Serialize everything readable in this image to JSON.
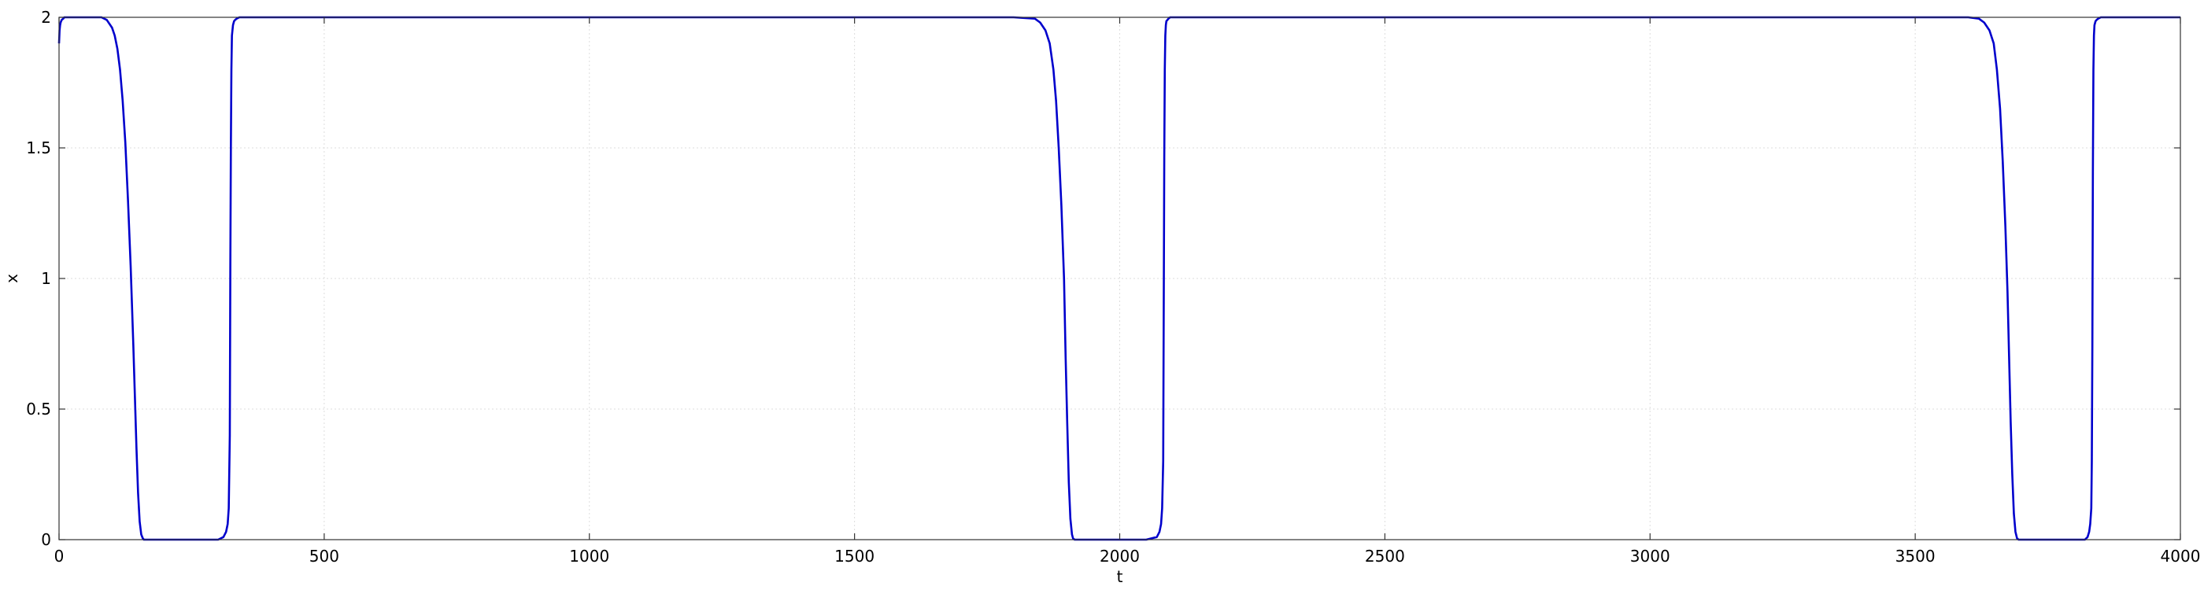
{
  "chart_data": {
    "type": "line",
    "title": "",
    "xlabel": "t",
    "ylabel": "x",
    "xlim": [
      0,
      4000
    ],
    "ylim": [
      0,
      2
    ],
    "grid": true,
    "x_ticks": [
      0,
      500,
      1000,
      1500,
      2000,
      2500,
      3000,
      3500,
      4000
    ],
    "x_tick_labels": [
      "0",
      "500",
      "1000",
      "1500",
      "2000",
      "2500",
      "3000",
      "3500",
      "4000"
    ],
    "y_ticks": [
      0,
      0.5,
      1,
      1.5,
      2
    ],
    "y_tick_labels": [
      "0",
      "0.5",
      "1",
      "1.5",
      "2"
    ],
    "line_color": "#0000cc",
    "grid_color": "#dddddd",
    "series": [
      {
        "x": [
          0,
          1,
          2,
          3,
          5,
          8,
          10,
          20,
          40,
          60,
          80,
          90,
          100,
          105,
          110,
          115,
          120,
          125,
          130,
          135,
          140,
          143,
          146,
          149,
          152,
          155,
          158,
          160,
          165,
          170,
          200,
          250,
          300,
          310,
          315,
          318,
          320,
          322,
          323,
          324,
          325,
          326,
          328,
          330,
          332,
          335,
          340,
          360,
          500,
          1000,
          1500,
          1800,
          1840,
          1850,
          1860,
          1868,
          1875,
          1880,
          1885,
          1890,
          1895,
          1898,
          1901,
          1904,
          1907,
          1910,
          1912,
          1915,
          1920,
          1950,
          2000,
          2050,
          2070,
          2075,
          2078,
          2080,
          2082,
          2083,
          2084,
          2085,
          2086,
          2087,
          2088,
          2090,
          2092,
          2095,
          2100,
          2150,
          2500,
          3000,
          3500,
          3600,
          3620,
          3630,
          3640,
          3648,
          3654,
          3660,
          3665,
          3670,
          3674,
          3677,
          3680,
          3683,
          3686,
          3689,
          3692,
          3695,
          3700,
          3750,
          3800,
          3820,
          3825,
          3828,
          3830,
          3832,
          3833,
          3834,
          3835,
          3836,
          3837,
          3838,
          3840,
          3842,
          3845,
          3850,
          3900,
          4000
        ],
        "y": [
          1.9,
          1.95,
          1.97,
          1.98,
          1.99,
          1.995,
          2,
          2,
          2,
          2,
          2,
          1.99,
          1.96,
          1.93,
          1.88,
          1.8,
          1.68,
          1.52,
          1.3,
          1.05,
          0.75,
          0.55,
          0.35,
          0.18,
          0.07,
          0.02,
          0.005,
          0,
          0,
          0,
          0,
          0,
          0,
          0.01,
          0.03,
          0.06,
          0.12,
          0.4,
          1.04,
          1.5,
          1.8,
          1.93,
          1.97,
          1.985,
          1.99,
          1.995,
          2,
          2,
          2,
          2,
          2,
          2,
          1.995,
          1.98,
          1.95,
          1.9,
          1.8,
          1.68,
          1.5,
          1.28,
          1.0,
          0.7,
          0.45,
          0.22,
          0.08,
          0.02,
          0.005,
          0,
          0,
          0,
          0,
          0,
          0.01,
          0.03,
          0.06,
          0.12,
          0.3,
          0.88,
          1.46,
          1.8,
          1.93,
          1.97,
          1.985,
          1.99,
          1.995,
          2,
          2,
          2,
          2,
          2,
          2,
          2,
          1.995,
          1.98,
          1.95,
          1.9,
          1.8,
          1.65,
          1.45,
          1.2,
          0.95,
          0.7,
          0.45,
          0.25,
          0.1,
          0.03,
          0.005,
          0,
          0,
          0,
          0,
          0,
          0.01,
          0.03,
          0.06,
          0.12,
          0.3,
          0.74,
          1.41,
          1.8,
          1.93,
          1.97,
          1.985,
          1.99,
          1.995,
          2,
          2,
          2
        ]
      }
    ]
  }
}
